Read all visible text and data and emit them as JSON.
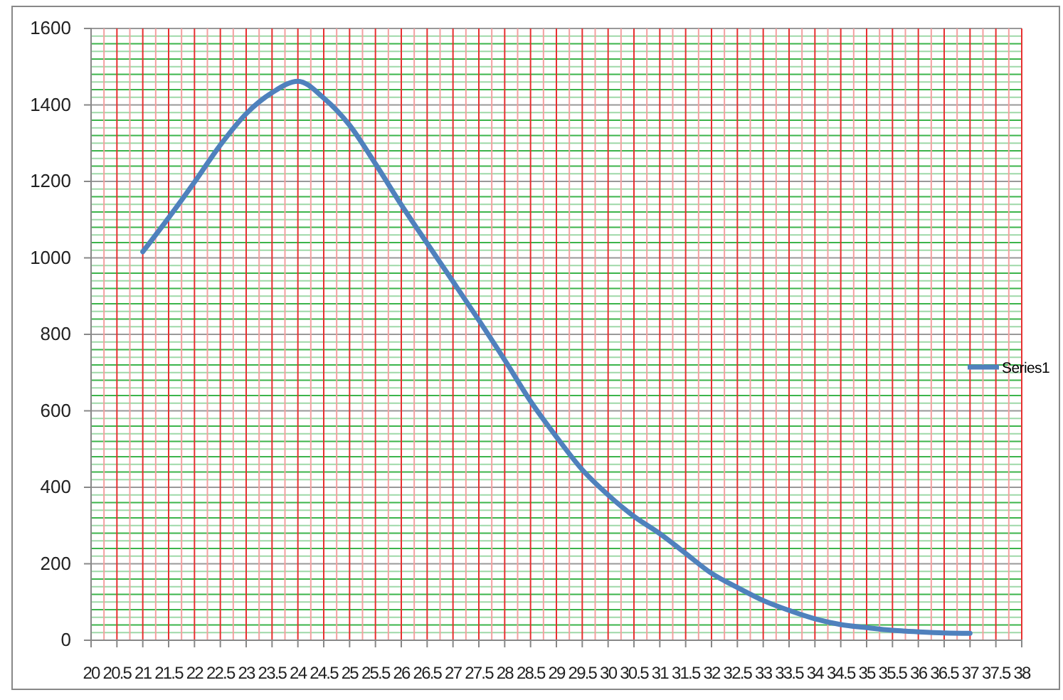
{
  "chart_data": {
    "type": "line",
    "x": [
      21,
      21.5,
      22,
      22.5,
      23,
      23.5,
      24,
      24.5,
      25,
      25.5,
      26,
      26.5,
      27,
      27.5,
      28,
      28.5,
      29,
      29.5,
      30,
      30.5,
      31,
      31.5,
      32,
      32.5,
      33,
      33.5,
      34,
      34.5,
      35,
      35.5,
      36,
      36.5,
      37
    ],
    "series": [
      {
        "name": "Series1",
        "color": "#4f81bd",
        "values": [
          1016,
          1105,
          1198,
          1295,
          1377,
          1432,
          1462,
          1418,
          1347,
          1246,
          1139,
          1038,
          938,
          837,
          733,
          625,
          532,
          446,
          380,
          324,
          279,
          227,
          175,
          138,
          104,
          78,
          56,
          41,
          33,
          26,
          22,
          19,
          18
        ]
      }
    ],
    "xlim": [
      20,
      38
    ],
    "xticks": [
      20,
      {
        "value": 20.25,
        "label": null
      },
      20.5,
      {
        "value": 20.75,
        "label": null
      },
      21,
      {
        "value": 21.25,
        "label": null
      },
      21.5,
      {
        "value": 21.75,
        "label": null
      },
      22,
      {
        "value": 22.25,
        "label": null
      },
      22.5,
      {
        "value": 22.75,
        "label": null
      },
      23,
      {
        "value": 23.25,
        "label": null
      },
      23.5,
      {
        "value": 23.75,
        "label": null
      },
      24,
      {
        "value": 24.25,
        "label": null
      },
      24.5,
      {
        "value": 24.75,
        "label": null
      },
      25,
      {
        "value": 25.25,
        "label": null
      },
      25.5,
      {
        "value": 25.75,
        "label": null
      },
      26,
      {
        "value": 26.25,
        "label": null
      },
      26.5,
      {
        "value": 26.75,
        "label": null
      },
      27,
      {
        "value": 27.25,
        "label": null
      },
      27.5,
      {
        "value": 27.75,
        "label": null
      },
      28,
      {
        "value": 28.25,
        "label": null
      },
      28.5,
      {
        "value": 28.75,
        "label": null
      },
      29,
      {
        "value": 29.25,
        "label": null
      },
      29.5,
      {
        "value": 29.75,
        "label": null
      },
      30,
      {
        "value": 30.25,
        "label": null
      },
      30.5,
      {
        "value": 30.75,
        "label": null
      },
      31,
      {
        "value": 31.25,
        "label": null
      },
      31.5,
      {
        "value": 31.75,
        "label": null
      },
      32,
      {
        "value": 32.25,
        "label": null
      },
      32.5,
      {
        "value": 32.75,
        "label": null
      },
      33,
      {
        "value": 33.25,
        "label": null
      },
      33.5,
      {
        "value": 33.75,
        "label": null
      },
      34,
      {
        "value": 34.25,
        "label": null
      },
      34.5,
      {
        "value": 34.75,
        "label": null
      },
      35,
      {
        "value": 35.25,
        "label": null
      },
      35.5,
      {
        "value": 35.75,
        "label": null
      },
      36,
      {
        "value": 36.25,
        "label": null
      },
      36.5,
      {
        "value": 36.75,
        "label": null
      },
      37,
      {
        "value": 37.25,
        "label": null
      },
      37.5,
      {
        "value": 37.75,
        "label": null
      },
      38
    ],
    "ylim": [
      0,
      1600
    ],
    "yticks": [
      0,
      {
        "value": 20,
        "label": null
      },
      {
        "value": 40,
        "label": null
      },
      {
        "value": 60,
        "label": null
      },
      {
        "value": 80,
        "label": null
      },
      {
        "value": 100,
        "label": null
      },
      {
        "value": 120,
        "label": null
      },
      {
        "value": 140,
        "label": null
      },
      {
        "value": 160,
        "label": null
      },
      {
        "value": 180,
        "label": null
      },
      200,
      {
        "value": 220,
        "label": null
      },
      {
        "value": 240,
        "label": null
      },
      {
        "value": 260,
        "label": null
      },
      {
        "value": 280,
        "label": null
      },
      {
        "value": 300,
        "label": null
      },
      {
        "value": 320,
        "label": null
      },
      {
        "value": 340,
        "label": null
      },
      {
        "value": 360,
        "label": null
      },
      {
        "value": 380,
        "label": null
      },
      400,
      {
        "value": 420,
        "label": null
      },
      {
        "value": 440,
        "label": null
      },
      {
        "value": 460,
        "label": null
      },
      {
        "value": 480,
        "label": null
      },
      {
        "value": 500,
        "label": null
      },
      {
        "value": 520,
        "label": null
      },
      {
        "value": 540,
        "label": null
      },
      {
        "value": 560,
        "label": null
      },
      {
        "value": 580,
        "label": null
      },
      600,
      {
        "value": 620,
        "label": null
      },
      {
        "value": 640,
        "label": null
      },
      {
        "value": 660,
        "label": null
      },
      {
        "value": 680,
        "label": null
      },
      {
        "value": 700,
        "label": null
      },
      {
        "value": 720,
        "label": null
      },
      {
        "value": 740,
        "label": null
      },
      {
        "value": 760,
        "label": null
      },
      {
        "value": 780,
        "label": null
      },
      800,
      {
        "value": 820,
        "label": null
      },
      {
        "value": 840,
        "label": null
      },
      {
        "value": 860,
        "label": null
      },
      {
        "value": 880,
        "label": null
      },
      {
        "value": 900,
        "label": null
      },
      {
        "value": 920,
        "label": null
      },
      {
        "value": 940,
        "label": null
      },
      {
        "value": 960,
        "label": null
      },
      {
        "value": 980,
        "label": null
      },
      1000,
      {
        "value": 1020,
        "label": null
      },
      {
        "value": 1040,
        "label": null
      },
      {
        "value": 1060,
        "label": null
      },
      {
        "value": 1080,
        "label": null
      },
      {
        "value": 1100,
        "label": null
      },
      {
        "value": 1120,
        "label": null
      },
      {
        "value": 1140,
        "label": null
      },
      {
        "value": 1160,
        "label": null
      },
      {
        "value": 1180,
        "label": null
      },
      1200,
      {
        "value": 1220,
        "label": null
      },
      {
        "value": 1240,
        "label": null
      },
      {
        "value": 1260,
        "label": null
      },
      {
        "value": 1280,
        "label": null
      },
      {
        "value": 1300,
        "label": null
      },
      {
        "value": 1320,
        "label": null
      },
      {
        "value": 1340,
        "label": null
      },
      {
        "value": 1360,
        "label": null
      },
      {
        "value": 1380,
        "label": null
      },
      1400,
      {
        "value": 1420,
        "label": null
      },
      {
        "value": 1440,
        "label": null
      },
      {
        "value": 1460,
        "label": null
      },
      {
        "value": 1480,
        "label": null
      },
      {
        "value": 1500,
        "label": null
      },
      {
        "value": 1520,
        "label": null
      },
      {
        "value": 1540,
        "label": null
      },
      {
        "value": 1560,
        "label": null
      },
      {
        "value": 1580,
        "label": null
      },
      1600
    ],
    "grid": true,
    "legend": "right",
    "marker": "none",
    "line_style": "solid"
  }
}
